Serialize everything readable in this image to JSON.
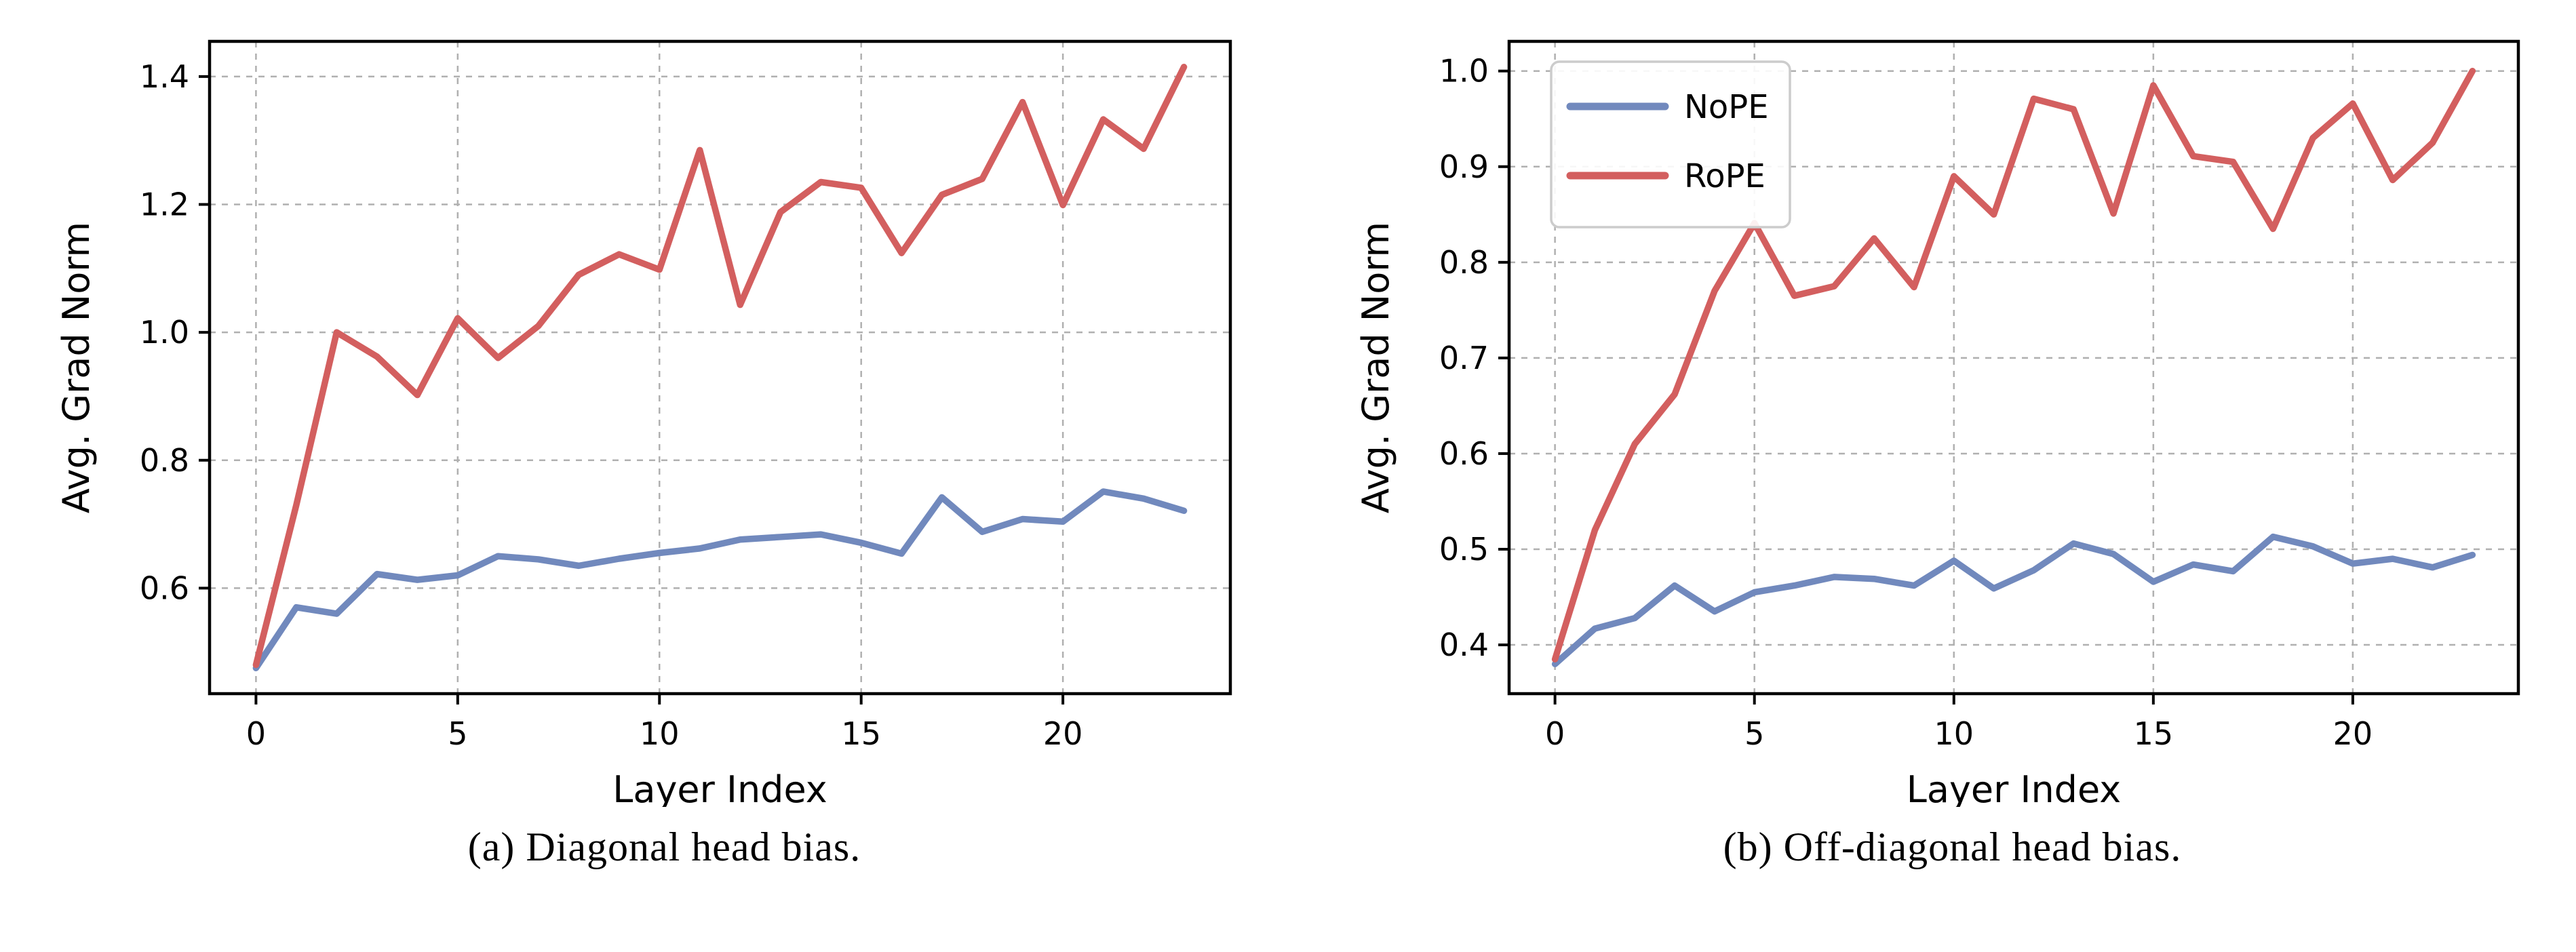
{
  "figure": {
    "background": "#ffffff",
    "grid_color": "#b0b0b0",
    "spine_color": "#000000",
    "legend_border_color": "#cccccc",
    "legend_fill": "#ffffff"
  },
  "chart_data": [
    {
      "type": "line",
      "panel": "a",
      "caption": "(a) Diagonal head bias.",
      "xlabel": "Layer Index",
      "ylabel": "Avg. Grad Norm",
      "x": [
        0,
        1,
        2,
        3,
        4,
        5,
        6,
        7,
        8,
        9,
        10,
        11,
        12,
        13,
        14,
        15,
        16,
        17,
        18,
        19,
        20,
        21,
        22,
        23
      ],
      "series": [
        {
          "name": "NoPE",
          "color": "#7189bd",
          "values": [
            0.475,
            0.57,
            0.56,
            0.622,
            0.613,
            0.62,
            0.65,
            0.645,
            0.635,
            0.646,
            0.655,
            0.662,
            0.676,
            0.68,
            0.684,
            0.671,
            0.654,
            0.742,
            0.688,
            0.708,
            0.704,
            0.751,
            0.74,
            0.721
          ]
        },
        {
          "name": "RoPE",
          "color": "#d35f5f",
          "values": [
            0.48,
            0.73,
            1.0,
            0.962,
            0.902,
            1.022,
            0.96,
            1.01,
            1.09,
            1.122,
            1.098,
            1.285,
            1.043,
            1.188,
            1.235,
            1.226,
            1.124,
            1.215,
            1.24,
            1.36,
            1.199,
            1.333,
            1.287,
            1.415
          ]
        }
      ],
      "xlim": [
        -1.15,
        24.15
      ],
      "ylim": [
        0.435,
        1.455
      ],
      "xticks": [
        0,
        5,
        10,
        15,
        20
      ],
      "yticks": [
        0.6,
        0.8,
        1.0,
        1.2,
        1.4
      ],
      "grid": true,
      "legend": {
        "visible": false,
        "position": "upper-left"
      }
    },
    {
      "type": "line",
      "panel": "b",
      "caption": "(b) Off-diagonal head bias.",
      "xlabel": "Layer Index",
      "ylabel": "Avg. Grad Norm",
      "x": [
        0,
        1,
        2,
        3,
        4,
        5,
        6,
        7,
        8,
        9,
        10,
        11,
        12,
        13,
        14,
        15,
        16,
        17,
        18,
        19,
        20,
        21,
        22,
        23
      ],
      "series": [
        {
          "name": "NoPE",
          "color": "#7189bd",
          "values": [
            0.38,
            0.417,
            0.428,
            0.462,
            0.435,
            0.455,
            0.462,
            0.471,
            0.469,
            0.462,
            0.488,
            0.459,
            0.478,
            0.506,
            0.495,
            0.466,
            0.484,
            0.477,
            0.513,
            0.503,
            0.485,
            0.49,
            0.481,
            0.494
          ]
        },
        {
          "name": "RoPE",
          "color": "#d35f5f",
          "values": [
            0.385,
            0.52,
            0.61,
            0.662,
            0.77,
            0.841,
            0.765,
            0.775,
            0.825,
            0.774,
            0.89,
            0.85,
            0.971,
            0.96,
            0.851,
            0.985,
            0.911,
            0.905,
            0.835,
            0.93,
            0.966,
            0.886,
            0.925,
            1.0
          ]
        }
      ],
      "xlim": [
        -1.15,
        24.15
      ],
      "ylim": [
        0.349,
        1.031
      ],
      "xticks": [
        0,
        5,
        10,
        15,
        20
      ],
      "yticks": [
        0.4,
        0.5,
        0.6,
        0.7,
        0.8,
        0.9,
        1.0
      ],
      "grid": true,
      "legend": {
        "visible": true,
        "position": "upper-left",
        "entries": [
          "NoPE",
          "RoPE"
        ]
      }
    }
  ]
}
